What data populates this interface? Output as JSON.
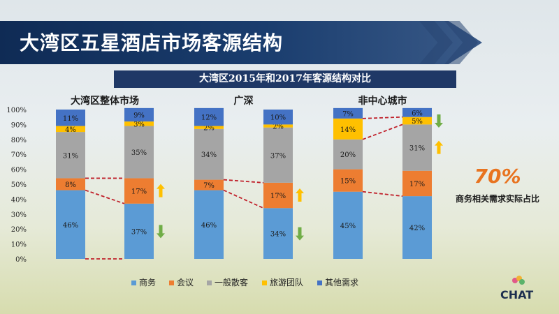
{
  "header": {
    "title": "大湾区五星酒店市场客源结构"
  },
  "chart_data": {
    "type": "bar",
    "stacked": true,
    "title": "大湾区2015年和2017年客源结构对比",
    "ylim": [
      0,
      100
    ],
    "yticks": [
      "0%",
      "10%",
      "20%",
      "30%",
      "40%",
      "50%",
      "60%",
      "70%",
      "80%",
      "90%",
      "100%"
    ],
    "grid": false,
    "legend_position": "bottom",
    "groups": [
      "大湾区整体市场",
      "广深",
      "非中心城市"
    ],
    "series": [
      {
        "name": "商务",
        "color": "#5b9bd5",
        "values": [
          46,
          37,
          46,
          34,
          45,
          42
        ],
        "labels": [
          "46%",
          "37%",
          "46%",
          "34%",
          "45%",
          "42%"
        ]
      },
      {
        "name": "会议",
        "color": "#ed7d31",
        "values": [
          8,
          17,
          7,
          17,
          15,
          17
        ],
        "labels": [
          "8%",
          "17%",
          "7%",
          "17%",
          "15%",
          "17%"
        ]
      },
      {
        "name": "一般散客",
        "color": "#a5a5a5",
        "values": [
          31,
          35,
          34,
          37,
          20,
          31
        ],
        "labels": [
          "31%",
          "35%",
          "34%",
          "37%",
          "20%",
          "31%"
        ]
      },
      {
        "name": "旅游团队",
        "color": "#ffc000",
        "values": [
          4,
          3,
          2,
          2,
          14,
          5
        ],
        "labels": [
          "4%",
          "3%",
          "2%",
          "2%",
          "14%",
          "5%"
        ]
      },
      {
        "name": "其他需求",
        "color": "#4472c4",
        "values": [
          11,
          9,
          12,
          10,
          7,
          6
        ],
        "labels": [
          "11%",
          "9%",
          "12%",
          "10%",
          "7%",
          "6%"
        ]
      }
    ],
    "trend_arrows": [
      {
        "bar": 1,
        "series": "会议",
        "direction": "up",
        "color": "#ffc000"
      },
      {
        "bar": 1,
        "series": "商务",
        "direction": "down",
        "color": "#70ad47"
      },
      {
        "bar": 3,
        "series": "会议",
        "direction": "up",
        "color": "#ffc000"
      },
      {
        "bar": 3,
        "series": "商务",
        "direction": "down",
        "color": "#70ad47"
      },
      {
        "bar": 5,
        "series": "旅游团队",
        "direction": "down",
        "color": "#70ad47"
      },
      {
        "bar": 5,
        "series": "一般散客",
        "direction": "up",
        "color": "#ffc000"
      }
    ],
    "callout": {
      "value": "70%",
      "label": "商务相关需求实际占比",
      "color": "#e8731f"
    }
  },
  "branding": {
    "text": "CHAT"
  }
}
